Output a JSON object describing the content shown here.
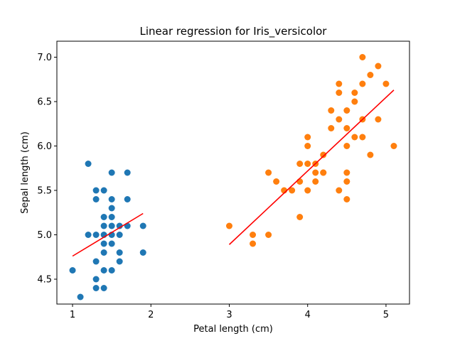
{
  "chart_data": {
    "type": "scatter",
    "title": "Linear regression for Iris_versicolor",
    "xlabel": "Petal length (cm)",
    "ylabel": "Sepal length (cm)",
    "xlim": [
      0.8,
      5.3
    ],
    "ylim": [
      4.22,
      7.18
    ],
    "xticks": [
      1,
      2,
      3,
      4,
      5
    ],
    "yticks": [
      4.5,
      5.0,
      5.5,
      6.0,
      6.5,
      7.0
    ],
    "xtick_labels": [
      "1",
      "2",
      "3",
      "4",
      "5"
    ],
    "ytick_labels": [
      "4.5",
      "5.0",
      "5.5",
      "6.0",
      "6.5",
      "7.0"
    ],
    "grid": false,
    "series": [
      {
        "kind": "points",
        "color": "#1f77b4",
        "points": [
          [
            1.0,
            4.6
          ],
          [
            1.1,
            4.3
          ],
          [
            1.2,
            5.8
          ],
          [
            1.2,
            5.0
          ],
          [
            1.3,
            5.5
          ],
          [
            1.3,
            5.4
          ],
          [
            1.3,
            5.0
          ],
          [
            1.3,
            4.7
          ],
          [
            1.3,
            4.5
          ],
          [
            1.3,
            4.4
          ],
          [
            1.4,
            5.5
          ],
          [
            1.4,
            5.2
          ],
          [
            1.4,
            5.1
          ],
          [
            1.4,
            5.0
          ],
          [
            1.4,
            4.9
          ],
          [
            1.4,
            4.8
          ],
          [
            1.4,
            4.6
          ],
          [
            1.4,
            4.4
          ],
          [
            1.5,
            5.7
          ],
          [
            1.5,
            5.4
          ],
          [
            1.5,
            5.3
          ],
          [
            1.5,
            5.2
          ],
          [
            1.5,
            5.1
          ],
          [
            1.5,
            5.0
          ],
          [
            1.5,
            4.9
          ],
          [
            1.5,
            4.6
          ],
          [
            1.6,
            5.1
          ],
          [
            1.6,
            5.0
          ],
          [
            1.6,
            4.8
          ],
          [
            1.6,
            4.7
          ],
          [
            1.7,
            5.7
          ],
          [
            1.7,
            5.4
          ],
          [
            1.7,
            5.1
          ],
          [
            1.9,
            5.1
          ],
          [
            1.9,
            4.8
          ]
        ]
      },
      {
        "kind": "points",
        "color": "#ff7f0e",
        "points": [
          [
            3.0,
            5.1
          ],
          [
            3.3,
            5.0
          ],
          [
            3.3,
            4.9
          ],
          [
            3.5,
            5.7
          ],
          [
            3.5,
            5.0
          ],
          [
            3.6,
            5.6
          ],
          [
            3.7,
            5.5
          ],
          [
            3.8,
            5.5
          ],
          [
            3.9,
            5.8
          ],
          [
            3.9,
            5.6
          ],
          [
            3.9,
            5.2
          ],
          [
            4.0,
            6.1
          ],
          [
            4.0,
            6.0
          ],
          [
            4.0,
            5.8
          ],
          [
            4.0,
            5.5
          ],
          [
            4.1,
            5.8
          ],
          [
            4.1,
            5.7
          ],
          [
            4.1,
            5.6
          ],
          [
            4.2,
            5.9
          ],
          [
            4.2,
            5.7
          ],
          [
            4.2,
            5.7
          ],
          [
            4.3,
            6.4
          ],
          [
            4.3,
            6.2
          ],
          [
            4.4,
            6.7
          ],
          [
            4.4,
            6.6
          ],
          [
            4.4,
            6.3
          ],
          [
            4.4,
            5.5
          ],
          [
            4.5,
            6.4
          ],
          [
            4.5,
            6.2
          ],
          [
            4.5,
            6.0
          ],
          [
            4.5,
            5.7
          ],
          [
            4.5,
            5.6
          ],
          [
            4.5,
            5.4
          ],
          [
            4.6,
            6.6
          ],
          [
            4.6,
            6.5
          ],
          [
            4.6,
            6.1
          ],
          [
            4.7,
            7.0
          ],
          [
            4.7,
            6.7
          ],
          [
            4.7,
            6.3
          ],
          [
            4.7,
            6.1
          ],
          [
            4.8,
            6.8
          ],
          [
            4.8,
            5.9
          ],
          [
            4.9,
            6.9
          ],
          [
            4.9,
            6.3
          ],
          [
            5.0,
            6.7
          ],
          [
            5.1,
            6.0
          ]
        ]
      },
      {
        "kind": "line",
        "color": "#ff0000",
        "points": [
          [
            1.0,
            4.76
          ],
          [
            1.9,
            5.24
          ]
        ]
      },
      {
        "kind": "line",
        "color": "#ff0000",
        "points": [
          [
            3.0,
            4.89
          ],
          [
            5.1,
            6.63
          ]
        ]
      }
    ]
  }
}
